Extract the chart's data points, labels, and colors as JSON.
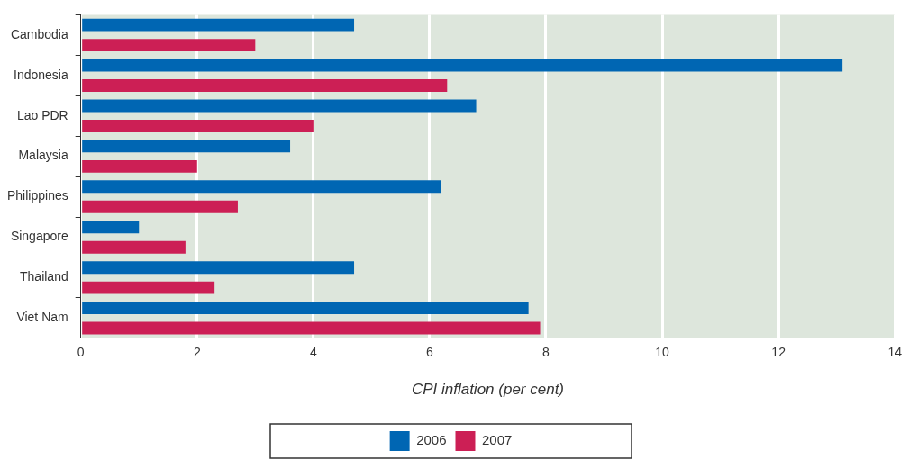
{
  "chart_data": {
    "type": "bar",
    "orientation": "horizontal",
    "xlabel": "CPI inflation (per cent)",
    "categories": [
      "Cambodia",
      "Indonesia",
      "Lao PDR",
      "Malaysia",
      "Philippines",
      "Singapore",
      "Thailand",
      "Viet Nam"
    ],
    "series": [
      {
        "name": "2006",
        "color": "#0066b3",
        "values": [
          4.7,
          13.1,
          6.8,
          3.6,
          6.2,
          1.0,
          4.7,
          7.7
        ]
      },
      {
        "name": "2007",
        "color": "#cc1f55",
        "values": [
          3.0,
          6.3,
          4.0,
          2.0,
          2.7,
          1.8,
          2.3,
          7.9
        ]
      }
    ],
    "xlim": [
      0,
      14
    ],
    "xticks": [
      0,
      2,
      4,
      6,
      8,
      10,
      12,
      14
    ],
    "grid": "x",
    "legend": "bottom"
  }
}
